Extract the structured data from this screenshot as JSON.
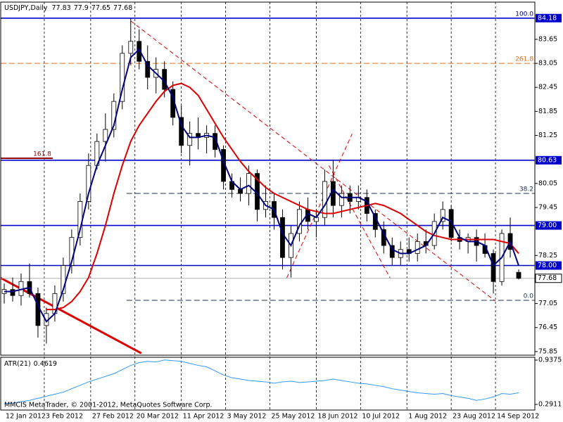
{
  "chart_data": {
    "type": "candlestick",
    "title": "USDJPY,Daily",
    "x": [
      0,
      4,
      8,
      12,
      16,
      20,
      24,
      28,
      32,
      36,
      40,
      44,
      48,
      52,
      56,
      60,
      64,
      68,
      72,
      76,
      80,
      84,
      88,
      92,
      96,
      100,
      104,
      108,
      112,
      116,
      120,
      124,
      128,
      132,
      136,
      140,
      144,
      148,
      152,
      156,
      160,
      164,
      168,
      172,
      176,
      180,
      184,
      188,
      192,
      196,
      200,
      204,
      208,
      212,
      216,
      220,
      224,
      228,
      232,
      236,
      240,
      244
    ],
    "xlim": [
      -1.67,
      251.67
    ],
    "xticks": [
      {
        "value": 0,
        "label": "12 Jan 2012"
      },
      {
        "value": 19,
        "label": "3 Feb 2012"
      },
      {
        "value": 41,
        "label": "27 Feb 2012"
      },
      {
        "value": 62,
        "label": "20 Mar 2012"
      },
      {
        "value": 84,
        "label": "11 Apr 2012"
      },
      {
        "value": 105,
        "label": "3 May 2012"
      },
      {
        "value": 126,
        "label": "25 May 2012"
      },
      {
        "value": 148,
        "label": "18 Jun 2012"
      },
      {
        "value": 169,
        "label": "10 Jul 2012"
      },
      {
        "value": 191,
        "label": "1 Aug 2012"
      },
      {
        "value": 212,
        "label": "23 Aug 2012"
      },
      {
        "value": 233,
        "label": "14 Sep 2012"
      }
    ],
    "ylim": [
      75.76,
      84.58
    ],
    "yticks": [
      83.65,
      83.05,
      82.45,
      81.85,
      81.25,
      80.05,
      79.45,
      78.25,
      77.05,
      76.45,
      75.85
    ],
    "open": [
      77.3,
      77.4,
      77.25,
      77.6,
      77.3,
      76.5,
      76.8,
      77.3,
      78.0,
      78.7,
      79.6,
      80.5,
      81.1,
      81.4,
      82.1,
      83.3,
      83.6,
      83.1,
      82.7,
      82.9,
      82.4,
      81.7,
      81.0,
      81.3,
      81.2,
      81.3,
      80.9,
      80.1,
      79.9,
      79.8,
      80.3,
      79.4,
      79.6,
      79.2,
      78.2,
      78.8,
      79.4,
      79.1,
      79.2,
      80.1,
      79.5,
      79.8,
      79.6,
      79.7,
      79.3,
      78.9,
      78.5,
      78.2,
      78.4,
      78.3,
      78.6,
      78.5,
      79.1,
      79.4,
      78.7,
      78.6,
      78.7,
      78.5,
      78.3,
      77.6,
      78.8,
      77.83
    ],
    "high": [
      77.55,
      77.7,
      77.8,
      78.05,
      77.45,
      76.95,
      77.5,
      78.2,
      78.9,
      79.8,
      80.8,
      81.3,
      81.8,
      82.3,
      83.5,
      84.18,
      83.9,
      83.5,
      83.2,
      83.1,
      82.6,
      82.0,
      81.6,
      81.7,
      81.5,
      81.5,
      81.0,
      80.3,
      80.2,
      80.5,
      80.4,
      80.0,
      79.8,
      79.4,
      79.0,
      79.6,
      79.7,
      79.4,
      80.4,
      80.63,
      80.0,
      80.0,
      80.0,
      79.9,
      79.4,
      79.1,
      78.7,
      78.6,
      78.7,
      78.8,
      78.9,
      79.3,
      79.6,
      79.5,
      78.9,
      78.8,
      78.9,
      78.8,
      78.4,
      78.9,
      79.2,
      77.9
    ],
    "low": [
      77.05,
      77.1,
      77.0,
      77.2,
      76.2,
      76.05,
      76.6,
      77.1,
      77.8,
      78.5,
      79.4,
      80.4,
      80.6,
      81.2,
      81.9,
      83.0,
      82.9,
      82.4,
      82.3,
      82.2,
      81.5,
      80.8,
      80.5,
      80.9,
      80.8,
      80.7,
      79.9,
      79.7,
      79.6,
      79.5,
      79.1,
      79.2,
      78.9,
      77.9,
      77.7,
      78.6,
      78.9,
      78.7,
      79.0,
      79.2,
      79.2,
      79.3,
      79.4,
      79.1,
      78.7,
      78.3,
      78.0,
      78.0,
      78.1,
      78.1,
      78.3,
      78.4,
      78.9,
      78.6,
      78.4,
      78.3,
      78.1,
      78.2,
      77.3,
      77.5,
      78.2,
      77.65
    ],
    "close": [
      77.4,
      77.25,
      77.6,
      77.3,
      76.5,
      76.8,
      77.3,
      78.0,
      78.7,
      79.6,
      80.5,
      81.1,
      81.4,
      82.1,
      83.3,
      83.6,
      83.1,
      82.7,
      82.9,
      82.4,
      81.7,
      81.0,
      81.3,
      81.2,
      81.3,
      80.9,
      80.1,
      79.9,
      79.8,
      80.3,
      79.4,
      79.6,
      79.2,
      78.2,
      78.8,
      79.4,
      79.1,
      79.2,
      80.1,
      79.5,
      79.8,
      79.6,
      79.7,
      79.3,
      78.9,
      78.5,
      78.2,
      78.4,
      78.3,
      78.6,
      78.5,
      79.1,
      79.4,
      78.7,
      78.6,
      78.7,
      78.5,
      78.3,
      77.6,
      78.8,
      78.4,
      77.68
    ],
    "bull_color": "#ffffff",
    "bear_color": "#000000",
    "series": [
      {
        "color": "#dd0000",
        "values": [
          null,
          null,
          null,
          null,
          null,
          76.9,
          76.9,
          76.95,
          77.1,
          77.35,
          77.7,
          78.3,
          79.0,
          79.8,
          80.5,
          81.1,
          81.5,
          81.8,
          82.1,
          82.35,
          82.5,
          82.55,
          82.45,
          82.25,
          81.9,
          81.55,
          81.2,
          80.9,
          80.6,
          80.35,
          80.15,
          79.95,
          79.8,
          79.7,
          79.6,
          79.5,
          79.4,
          79.35,
          79.3,
          79.3,
          79.35,
          79.4,
          79.45,
          79.5,
          79.55,
          79.5,
          79.4,
          79.3,
          79.15,
          79.0,
          78.85,
          78.75,
          78.7,
          78.65,
          78.65,
          78.65,
          78.65,
          78.65,
          78.65,
          78.6,
          78.55,
          78.3
        ]
      },
      {
        "color": "#000080",
        "values": [
          77.35,
          77.35,
          77.4,
          77.45,
          77.0,
          76.6,
          76.8,
          77.4,
          78.1,
          78.9,
          79.8,
          80.5,
          81.0,
          81.5,
          82.4,
          83.2,
          83.4,
          83.0,
          82.8,
          82.6,
          82.2,
          81.5,
          81.2,
          81.2,
          81.25,
          81.2,
          80.6,
          80.1,
          79.9,
          80.0,
          79.8,
          79.5,
          79.4,
          78.8,
          78.5,
          79.0,
          79.3,
          79.2,
          79.5,
          79.9,
          79.7,
          79.7,
          79.7,
          79.6,
          79.2,
          78.8,
          78.4,
          78.3,
          78.3,
          78.4,
          78.5,
          78.8,
          79.2,
          79.1,
          78.7,
          78.6,
          78.6,
          78.5,
          78.0,
          78.2,
          78.6,
          78.0
        ]
      }
    ],
    "hlines": [
      84.18,
      80.63,
      {
        "value": 79,
        "label": "79.00"
      },
      {
        "value": 78,
        "label": "78.00"
      }
    ],
    "hline_color": "#0000cc",
    "fib_levels": [
      {
        "label": "100.0",
        "value": 84.18,
        "x": [
          58,
          251.67
        ],
        "style": "none",
        "color": "#000080"
      },
      {
        "label": "261.8",
        "value": 83.05,
        "x": [
          -1.67,
          251.67
        ],
        "style": "dash",
        "color": "#e07020"
      },
      {
        "label": "161.8",
        "value": 80.68,
        "x": [
          -1.67,
          23
        ],
        "style": "solid",
        "color": "#8b0000"
      },
      {
        "label": "38.2",
        "value": 79.8,
        "x": [
          58,
          251.67
        ],
        "style": "dash",
        "color": "#203050"
      },
      {
        "label": "0.0",
        "value": 77.13,
        "x": [
          58,
          251.67
        ],
        "style": "dash",
        "color": "#203050"
      }
    ],
    "trendlines": [
      {
        "x": [
          -1.67,
          65
        ],
        "y": [
          77.69,
          75.81
        ],
        "color": "#dd0000",
        "width": 3,
        "style": "solid"
      },
      {
        "x": [
          60,
          233
        ],
        "y": [
          84.11,
          77.11
        ],
        "color": "#dd0000",
        "width": 1,
        "style": "dash"
      },
      {
        "x": [
          134,
          165
        ],
        "y": [
          77.69,
          81.29
        ],
        "color": "#dd0000",
        "width": 1,
        "style": "dash"
      },
      {
        "x": [
          154,
          183
        ],
        "y": [
          80.5,
          77.69
        ],
        "color": "#dd0000",
        "width": 1,
        "style": "dash"
      }
    ],
    "grid": true,
    "indicator": {
      "name": "ATR(21)",
      "color": "#3399ff",
      "values": [
        0.3,
        0.31,
        0.33,
        0.35,
        0.38,
        0.41,
        0.44,
        0.47,
        0.52,
        0.57,
        0.62,
        0.66,
        0.7,
        0.74,
        0.8,
        0.86,
        0.9,
        0.92,
        0.91,
        0.94,
        0.93,
        0.92,
        0.89,
        0.86,
        0.84,
        0.78,
        0.72,
        0.68,
        0.66,
        0.64,
        0.63,
        0.62,
        0.6,
        0.62,
        0.63,
        0.61,
        0.62,
        0.63,
        0.64,
        0.66,
        0.64,
        0.62,
        0.6,
        0.59,
        0.57,
        0.55,
        0.52,
        0.5,
        0.48,
        0.46,
        0.45,
        0.44,
        0.45,
        0.42,
        0.4,
        0.38,
        0.35,
        0.37,
        0.4,
        0.45,
        0.44,
        0.4619
      ],
      "ylim": [
        0.209,
        0.9785
      ],
      "yticks": [
        0.9375,
        0.2911
      ]
    },
    "footer": "MMCIS MetaTrader, © 2001-2012, MetaQuotes Software Corp."
  }
}
